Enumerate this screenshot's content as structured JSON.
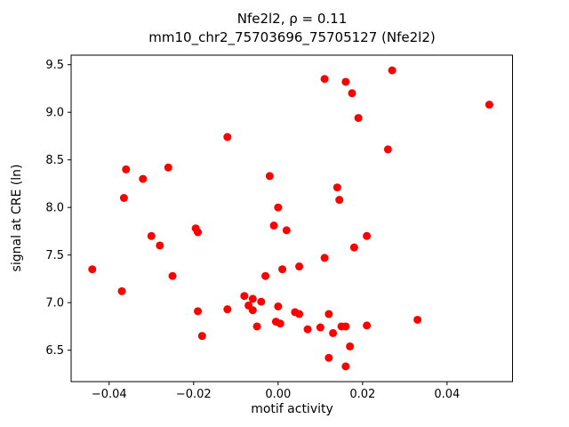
{
  "figure": {
    "title_line1": "Nfe2l2, ρ = 0.11",
    "title_line2": "mm10_chr2_75703696_75705127 (Nfe2l2)",
    "xlabel": "motif activity",
    "ylabel": "signal at CRE (ln)"
  },
  "chart_data": {
    "type": "scatter",
    "title": "Nfe2l2, ρ = 0.11 — mm10_chr2_75703696_75705127 (Nfe2l2)",
    "xlabel": "motif activity",
    "ylabel": "signal at CRE (ln)",
    "xlim": [
      -0.049,
      0.0555
    ],
    "ylim": [
      6.17,
      9.6
    ],
    "xticks": [
      -0.04,
      -0.02,
      0.0,
      0.02,
      0.04
    ],
    "yticks": [
      6.5,
      7.0,
      7.5,
      8.0,
      8.5,
      9.0,
      9.5
    ],
    "grid": false,
    "legend": null,
    "marker_color": "#ff0000",
    "points": [
      [
        -0.044,
        7.35
      ],
      [
        -0.037,
        7.12
      ],
      [
        -0.036,
        8.4
      ],
      [
        -0.0365,
        8.1
      ],
      [
        -0.032,
        8.3
      ],
      [
        -0.03,
        7.7
      ],
      [
        -0.028,
        7.6
      ],
      [
        -0.026,
        8.42
      ],
      [
        -0.025,
        7.28
      ],
      [
        -0.0195,
        7.78
      ],
      [
        -0.019,
        7.74
      ],
      [
        -0.019,
        6.91
      ],
      [
        -0.018,
        6.65
      ],
      [
        -0.012,
        8.74
      ],
      [
        -0.012,
        6.93
      ],
      [
        -0.008,
        7.07
      ],
      [
        -0.007,
        6.97
      ],
      [
        -0.006,
        7.04
      ],
      [
        -0.006,
        6.92
      ],
      [
        -0.005,
        6.75
      ],
      [
        -0.004,
        7.01
      ],
      [
        -0.003,
        7.28
      ],
      [
        -0.002,
        8.33
      ],
      [
        -0.001,
        7.81
      ],
      [
        0.0,
        8.0
      ],
      [
        0.0,
        6.96
      ],
      [
        -0.0005,
        6.8
      ],
      [
        0.0005,
        6.78
      ],
      [
        0.001,
        7.35
      ],
      [
        0.002,
        7.76
      ],
      [
        0.004,
        6.9
      ],
      [
        0.005,
        7.38
      ],
      [
        0.005,
        6.88
      ],
      [
        0.007,
        6.72
      ],
      [
        0.01,
        6.74
      ],
      [
        0.011,
        9.35
      ],
      [
        0.011,
        7.47
      ],
      [
        0.012,
        6.88
      ],
      [
        0.012,
        6.42
      ],
      [
        0.013,
        6.68
      ],
      [
        0.014,
        8.21
      ],
      [
        0.0145,
        8.08
      ],
      [
        0.015,
        6.75
      ],
      [
        0.016,
        6.75
      ],
      [
        0.016,
        9.32
      ],
      [
        0.016,
        6.33
      ],
      [
        0.017,
        6.54
      ],
      [
        0.0175,
        9.2
      ],
      [
        0.018,
        7.58
      ],
      [
        0.019,
        8.94
      ],
      [
        0.021,
        7.7
      ],
      [
        0.021,
        6.76
      ],
      [
        0.026,
        8.61
      ],
      [
        0.027,
        9.44
      ],
      [
        0.033,
        6.82
      ],
      [
        0.05,
        9.08
      ]
    ]
  }
}
